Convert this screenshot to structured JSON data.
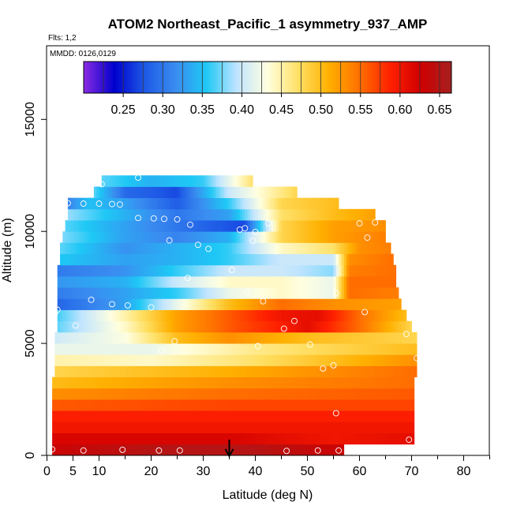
{
  "chart_data": {
    "type": "heatmap",
    "title": "ATOM2 Northeast_Pacific_1 asymmetry_937_AMP",
    "flights_label": "Flts: 1,2",
    "dates_label": "MMDD: 0126,0129",
    "xlabel": "Latitude (deg N)",
    "ylabel": "Altitude (m)",
    "xlim": [
      0,
      85
    ],
    "ylim": [
      0,
      17500
    ],
    "x_ticks": [
      0,
      5,
      10,
      20,
      30,
      40,
      50,
      60,
      70,
      80
    ],
    "y_ticks": [
      0,
      5000,
      10000,
      15000
    ],
    "colorbar": {
      "min": 0.2,
      "max": 0.665,
      "ticks": [
        0.25,
        0.3,
        0.35,
        0.4,
        0.45,
        0.5,
        0.55,
        0.6,
        0.65
      ],
      "tick_labels": [
        "0.25",
        "0.30",
        "0.35",
        "0.40",
        "0.45",
        "0.50",
        "0.55",
        "0.60",
        "0.65"
      ],
      "palette": [
        "#8a2be2",
        "#0000cd",
        "#1e5ae6",
        "#3a8cf0",
        "#1ec8f5",
        "#c0e4ff",
        "#ffffe0",
        "#ffe066",
        "#ffb000",
        "#ff7000",
        "#ff2000",
        "#d00000",
        "#a52020"
      ]
    },
    "arrow_latitude": 35,
    "bands": [
      {
        "alt": [
          0,
          500
        ],
        "lat": [
          1,
          57
        ],
        "stops": [
          [
            0,
            0.63
          ],
          [
            20,
            0.65
          ],
          [
            40,
            0.65
          ],
          [
            57,
            0.63
          ]
        ]
      },
      {
        "alt": [
          500,
          1000
        ],
        "lat": [
          1,
          70.5
        ],
        "stops": [
          [
            0,
            0.62
          ],
          [
            35,
            0.62
          ],
          [
            55,
            0.6
          ],
          [
            70.5,
            0.61
          ]
        ]
      },
      {
        "alt": [
          1000,
          1500
        ],
        "lat": [
          1,
          70.5
        ],
        "stops": [
          [
            0,
            0.6
          ],
          [
            35,
            0.6
          ],
          [
            70.5,
            0.6
          ]
        ]
      },
      {
        "alt": [
          1500,
          2000
        ],
        "lat": [
          1,
          70.5
        ],
        "stops": [
          [
            0,
            0.59
          ],
          [
            35,
            0.59
          ],
          [
            70.5,
            0.59
          ]
        ]
      },
      {
        "alt": [
          2000,
          2500
        ],
        "lat": [
          1,
          70.5
        ],
        "stops": [
          [
            0,
            0.56
          ],
          [
            35,
            0.57
          ],
          [
            70.5,
            0.57
          ]
        ]
      },
      {
        "alt": [
          2500,
          3000
        ],
        "lat": [
          1,
          70.5
        ],
        "stops": [
          [
            0,
            0.53
          ],
          [
            35,
            0.55
          ],
          [
            70.5,
            0.56
          ]
        ]
      },
      {
        "alt": [
          3000,
          3500
        ],
        "lat": [
          1,
          70.5
        ],
        "stops": [
          [
            0,
            0.5
          ],
          [
            35,
            0.53
          ],
          [
            70.5,
            0.55
          ]
        ]
      },
      {
        "alt": [
          3500,
          4000
        ],
        "lat": [
          1.5,
          71
        ],
        "stops": [
          [
            0,
            0.48
          ],
          [
            35,
            0.51
          ],
          [
            70.5,
            0.55
          ]
        ]
      },
      {
        "alt": [
          4000,
          4500
        ],
        "lat": [
          1.5,
          71
        ],
        "stops": [
          [
            0,
            0.45
          ],
          [
            20,
            0.44
          ],
          [
            40,
            0.47
          ],
          [
            71,
            0.53
          ]
        ]
      },
      {
        "alt": [
          4500,
          5000
        ],
        "lat": [
          1.5,
          71
        ],
        "stops": [
          [
            0,
            0.42
          ],
          [
            20,
            0.42
          ],
          [
            40,
            0.46
          ],
          [
            71,
            0.5
          ]
        ]
      },
      {
        "alt": [
          5000,
          5500
        ],
        "lat": [
          1.5,
          71
        ],
        "stops": [
          [
            0,
            0.4
          ],
          [
            15,
            0.43
          ],
          [
            25,
            0.5
          ],
          [
            35,
            0.53
          ],
          [
            50,
            0.5
          ],
          [
            71,
            0.48
          ]
        ]
      },
      {
        "alt": [
          5500,
          6000
        ],
        "lat": [
          2,
          70
        ],
        "stops": [
          [
            0,
            0.36
          ],
          [
            15,
            0.44
          ],
          [
            25,
            0.52
          ],
          [
            35,
            0.56
          ],
          [
            45,
            0.59
          ],
          [
            50,
            0.61
          ],
          [
            60,
            0.55
          ],
          [
            70,
            0.48
          ]
        ]
      },
      {
        "alt": [
          6000,
          6500
        ],
        "lat": [
          2,
          69
        ],
        "stops": [
          [
            0,
            0.35
          ],
          [
            15,
            0.45
          ],
          [
            25,
            0.52
          ],
          [
            35,
            0.56
          ],
          [
            45,
            0.6
          ],
          [
            52,
            0.61
          ],
          [
            60,
            0.55
          ],
          [
            69,
            0.5
          ]
        ]
      },
      {
        "alt": [
          6500,
          7000
        ],
        "lat": [
          2,
          68
        ],
        "stops": [
          [
            0,
            0.28
          ],
          [
            15,
            0.33
          ],
          [
            25,
            0.42
          ],
          [
            35,
            0.5
          ],
          [
            45,
            0.55
          ],
          [
            55,
            0.53
          ],
          [
            68,
            0.52
          ]
        ]
      },
      {
        "alt": [
          7000,
          7500
        ],
        "lat": [
          2,
          67.5
        ],
        "stops": [
          [
            0,
            0.3
          ],
          [
            15,
            0.33
          ],
          [
            25,
            0.36
          ],
          [
            35,
            0.42
          ],
          [
            45,
            0.44
          ],
          [
            55,
            0.42
          ],
          [
            58,
            0.55
          ],
          [
            67.5,
            0.54
          ]
        ]
      },
      {
        "alt": [
          7500,
          8000
        ],
        "lat": [
          2,
          67
        ],
        "stops": [
          [
            0,
            0.32
          ],
          [
            15,
            0.34
          ],
          [
            25,
            0.4
          ],
          [
            35,
            0.44
          ],
          [
            45,
            0.44
          ],
          [
            55,
            0.42
          ],
          [
            58,
            0.55
          ],
          [
            67,
            0.55
          ]
        ]
      },
      {
        "alt": [
          8000,
          8500
        ],
        "lat": [
          2,
          67
        ],
        "stops": [
          [
            0,
            0.3
          ],
          [
            15,
            0.32
          ],
          [
            25,
            0.36
          ],
          [
            35,
            0.4
          ],
          [
            45,
            0.4
          ],
          [
            55,
            0.38
          ],
          [
            58,
            0.54
          ],
          [
            67,
            0.55
          ]
        ]
      },
      {
        "alt": [
          8500,
          9000
        ],
        "lat": [
          2.5,
          66.5
        ],
        "stops": [
          [
            0,
            0.36
          ],
          [
            15,
            0.33
          ],
          [
            25,
            0.34
          ],
          [
            35,
            0.36
          ],
          [
            45,
            0.4
          ],
          [
            55,
            0.4
          ],
          [
            58,
            0.53
          ],
          [
            66.5,
            0.55
          ]
        ]
      },
      {
        "alt": [
          9000,
          9500
        ],
        "lat": [
          2.5,
          66
        ],
        "stops": [
          [
            0,
            0.38
          ],
          [
            15,
            0.32
          ],
          [
            25,
            0.34
          ],
          [
            35,
            0.36
          ],
          [
            45,
            0.44
          ],
          [
            55,
            0.47
          ],
          [
            60,
            0.53
          ],
          [
            66,
            0.54
          ]
        ]
      },
      {
        "alt": [
          9500,
          10000
        ],
        "lat": [
          3,
          65
        ],
        "stops": [
          [
            0,
            0.39
          ],
          [
            15,
            0.33
          ],
          [
            25,
            0.31
          ],
          [
            35,
            0.34
          ],
          [
            45,
            0.48
          ],
          [
            55,
            0.52
          ],
          [
            65,
            0.54
          ]
        ]
      },
      {
        "alt": [
          10000,
          10500
        ],
        "lat": [
          3.5,
          65
        ],
        "stops": [
          [
            0,
            0.38
          ],
          [
            15,
            0.33
          ],
          [
            25,
            0.3
          ],
          [
            32,
            0.28
          ],
          [
            38,
            0.27
          ],
          [
            45,
            0.48
          ],
          [
            55,
            0.52
          ],
          [
            65,
            0.53
          ]
        ]
      },
      {
        "alt": [
          10500,
          11000
        ],
        "lat": [
          4,
          63
        ],
        "stops": [
          [
            0,
            0.4
          ],
          [
            15,
            0.34
          ],
          [
            25,
            0.3
          ],
          [
            35,
            0.33
          ],
          [
            45,
            0.47
          ],
          [
            55,
            0.5
          ],
          [
            63,
            0.52
          ]
        ]
      },
      {
        "alt": [
          11000,
          11500
        ],
        "lat": [
          4,
          56
        ],
        "stops": [
          [
            0,
            0.27
          ],
          [
            8,
            0.35
          ],
          [
            15,
            0.33
          ],
          [
            25,
            0.28
          ],
          [
            35,
            0.36
          ],
          [
            45,
            0.48
          ],
          [
            56,
            0.5
          ]
        ]
      },
      {
        "alt": [
          11500,
          12000
        ],
        "lat": [
          9,
          48
        ],
        "stops": [
          [
            9,
            0.37
          ],
          [
            15,
            0.29
          ],
          [
            25,
            0.27
          ],
          [
            35,
            0.4
          ],
          [
            48,
            0.48
          ]
        ]
      },
      {
        "alt": [
          12000,
          12500
        ],
        "lat": [
          10.5,
          39.5
        ],
        "stops": [
          [
            10.5,
            0.37
          ],
          [
            20,
            0.34
          ],
          [
            30,
            0.36
          ],
          [
            39.5,
            0.47
          ]
        ]
      }
    ],
    "points": [
      {
        "lat": 1,
        "alt": 270
      },
      {
        "lat": 7,
        "alt": 220
      },
      {
        "lat": 14.5,
        "alt": 250
      },
      {
        "lat": 21.5,
        "alt": 220
      },
      {
        "lat": 25.5,
        "alt": 220
      },
      {
        "lat": 46,
        "alt": 200
      },
      {
        "lat": 52,
        "alt": 220
      },
      {
        "lat": 56,
        "alt": 220
      },
      {
        "lat": 69.5,
        "alt": 700
      },
      {
        "lat": 55.5,
        "alt": 1880
      },
      {
        "lat": 53,
        "alt": 3880
      },
      {
        "lat": 55,
        "alt": 4020
      },
      {
        "lat": 71,
        "alt": 4340
      },
      {
        "lat": 50.5,
        "alt": 4950
      },
      {
        "lat": 40.5,
        "alt": 4880
      },
      {
        "lat": 22,
        "alt": 4680
      },
      {
        "lat": 24.5,
        "alt": 5100
      },
      {
        "lat": 69,
        "alt": 5420
      },
      {
        "lat": 45.5,
        "alt": 5660
      },
      {
        "lat": 47.5,
        "alt": 6000
      },
      {
        "lat": 5.5,
        "alt": 5800
      },
      {
        "lat": 1.5,
        "alt": 6330
      },
      {
        "lat": 2,
        "alt": 6500
      },
      {
        "lat": 8.5,
        "alt": 6950
      },
      {
        "lat": 12.5,
        "alt": 6750
      },
      {
        "lat": 15.5,
        "alt": 6700
      },
      {
        "lat": 20,
        "alt": 6610
      },
      {
        "lat": 61,
        "alt": 6400
      },
      {
        "lat": 41.5,
        "alt": 6880
      },
      {
        "lat": 38.5,
        "alt": 7300
      },
      {
        "lat": 55.5,
        "alt": 7240
      },
      {
        "lat": 27,
        "alt": 7920
      },
      {
        "lat": 35.5,
        "alt": 8280
      },
      {
        "lat": 31,
        "alt": 9220
      },
      {
        "lat": 29,
        "alt": 9400
      },
      {
        "lat": 39.5,
        "alt": 9580
      },
      {
        "lat": 23.5,
        "alt": 9600
      },
      {
        "lat": 61.5,
        "alt": 9720
      },
      {
        "lat": 37,
        "alt": 10080
      },
      {
        "lat": 38,
        "alt": 10140
      },
      {
        "lat": 40,
        "alt": 9980
      },
      {
        "lat": 27.5,
        "alt": 10300
      },
      {
        "lat": 42.5,
        "alt": 10360
      },
      {
        "lat": 60,
        "alt": 10360
      },
      {
        "lat": 63,
        "alt": 10400
      },
      {
        "lat": 17.5,
        "alt": 10600
      },
      {
        "lat": 20.5,
        "alt": 10580
      },
      {
        "lat": 22.5,
        "alt": 10560
      },
      {
        "lat": 25,
        "alt": 10540
      },
      {
        "lat": 4,
        "alt": 11260
      },
      {
        "lat": 7,
        "alt": 11240
      },
      {
        "lat": 10,
        "alt": 11240
      },
      {
        "lat": 12.5,
        "alt": 11220
      },
      {
        "lat": 14,
        "alt": 11200
      },
      {
        "lat": 10.5,
        "alt": 12110
      },
      {
        "lat": 17.5,
        "alt": 12400
      }
    ]
  }
}
